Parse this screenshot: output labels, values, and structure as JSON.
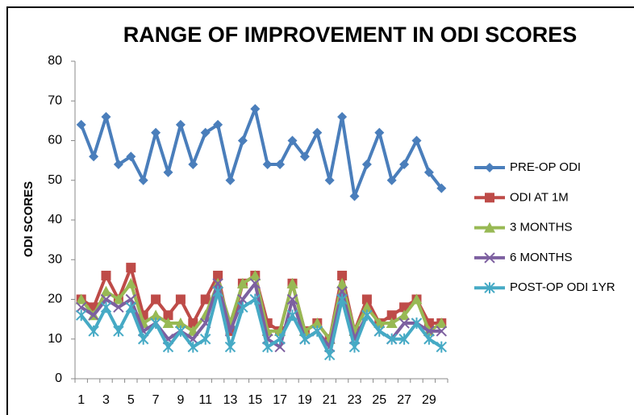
{
  "chart_data": {
    "type": "line",
    "title": "RANGE OF IMPROVEMENT IN ODI SCORES",
    "y_label": "ODI SCORES",
    "categories": [
      1,
      null,
      3,
      null,
      5,
      null,
      7,
      null,
      9,
      null,
      11,
      null,
      13,
      null,
      15,
      null,
      17,
      null,
      19,
      null,
      21,
      null,
      23,
      null,
      25,
      null,
      27,
      null,
      29,
      null
    ],
    "series": [
      {
        "name": "PRE-OP ODI",
        "color": "#4a7ebb",
        "marker": "diamond",
        "values": [
          64,
          56,
          66,
          54,
          56,
          50,
          62,
          52,
          64,
          54,
          62,
          64,
          50,
          60,
          68,
          54,
          54,
          60,
          56,
          62,
          50,
          66,
          46,
          54,
          62,
          50,
          54,
          60,
          52,
          48
        ]
      },
      {
        "name": "ODI AT 1M",
        "color": "#be4b48",
        "marker": "square",
        "values": [
          20,
          18,
          26,
          20,
          28,
          16,
          20,
          16,
          20,
          14,
          20,
          26,
          12,
          24,
          26,
          14,
          12,
          24,
          12,
          14,
          10,
          26,
          12,
          20,
          14,
          16,
          18,
          20,
          14,
          14
        ]
      },
      {
        "name": "3 MONTHS",
        "color": "#98b954",
        "marker": "triangle",
        "values": [
          20,
          16,
          22,
          20,
          24,
          14,
          16,
          14,
          14,
          12,
          16,
          24,
          14,
          24,
          26,
          12,
          12,
          24,
          12,
          14,
          10,
          24,
          12,
          18,
          14,
          14,
          16,
          20,
          12,
          14
        ]
      },
      {
        "name": "6 MONTHS",
        "color": "#7d60a0",
        "marker": "x",
        "values": [
          18,
          16,
          20,
          18,
          20,
          12,
          14,
          10,
          12,
          10,
          14,
          24,
          12,
          20,
          24,
          10,
          8,
          20,
          10,
          12,
          8,
          22,
          10,
          16,
          12,
          10,
          14,
          14,
          12,
          12
        ]
      },
      {
        "name": "POST-OP ODI 1YR",
        "color": "#46aac5",
        "marker": "star",
        "values": [
          16,
          12,
          18,
          12,
          18,
          10,
          14,
          8,
          12,
          8,
          10,
          22,
          8,
          18,
          20,
          8,
          10,
          16,
          10,
          12,
          6,
          20,
          8,
          16,
          12,
          10,
          10,
          14,
          10,
          8
        ]
      }
    ],
    "ylim": [
      0,
      80
    ],
    "yticks": [
      0,
      10,
      20,
      30,
      40,
      50,
      60,
      70,
      80
    ],
    "grid": false,
    "legend": "right"
  }
}
